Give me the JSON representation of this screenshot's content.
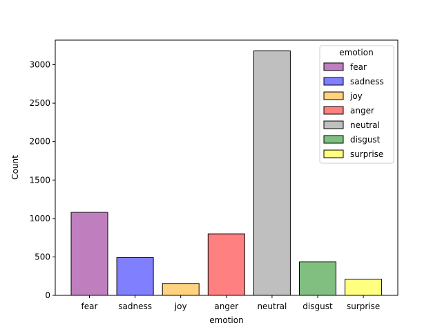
{
  "chart_data": {
    "type": "bar",
    "xlabel": "emotion",
    "ylabel": "Count",
    "ylim": [
      0,
      3320
    ],
    "yticks": [
      0,
      500,
      1000,
      1500,
      2000,
      2500,
      3000
    ],
    "categories": [
      "fear",
      "sadness",
      "joy",
      "anger",
      "neutral",
      "disgust",
      "surprise"
    ],
    "values": [
      1080,
      490,
      155,
      800,
      3180,
      435,
      210
    ],
    "colors": [
      "#bf7fbf",
      "#8080ff",
      "#ffd280",
      "#ff8080",
      "#bfbfbf",
      "#80bf80",
      "#ffff80"
    ],
    "legend": {
      "title": "emotion",
      "placement": "top-right",
      "entries": [
        "fear",
        "sadness",
        "joy",
        "anger",
        "neutral",
        "disgust",
        "surprise"
      ]
    },
    "grid": false
  }
}
